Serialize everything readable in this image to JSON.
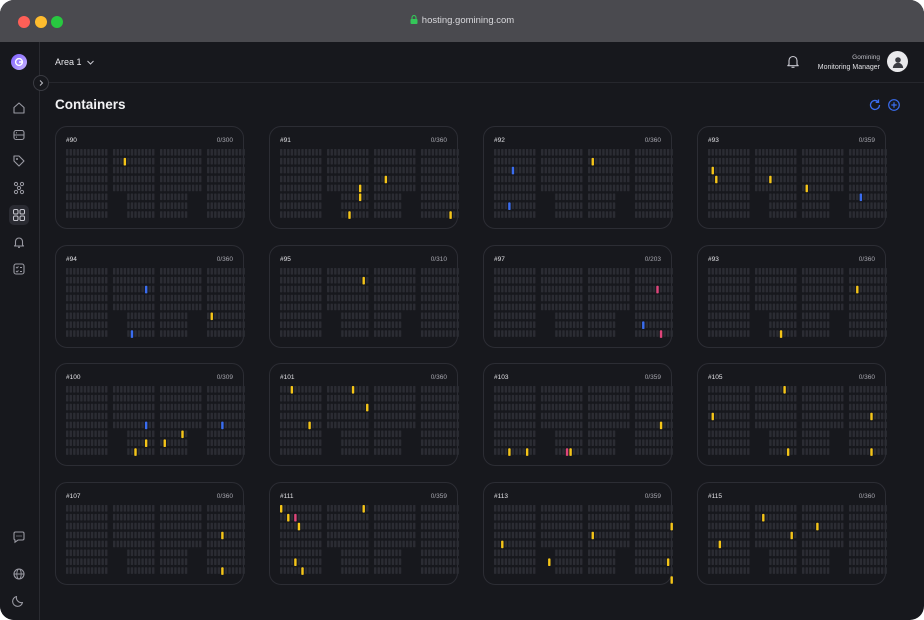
{
  "browser": {
    "url": "hosting.gomining.com"
  },
  "header": {
    "area": "Area 1",
    "user_line1": "Gomining",
    "user_line2": "Monitoring Manager"
  },
  "page": {
    "title": "Containers"
  },
  "colors": {
    "yellow": "#f5c518",
    "blue": "#3a6df0",
    "pink": "#e0457b",
    "slot": "#2b2c33",
    "accent": "#3a6df0"
  },
  "sidebar_icons": [
    "logo-icon",
    "home-icon",
    "server-icon",
    "tag-icon",
    "network-icon",
    "containers-icon",
    "bell-icon",
    "checklist-icon",
    "chat-icon",
    "globe-icon",
    "moon-icon"
  ],
  "containers": [
    {
      "id": "#90",
      "count": "0/300"
    },
    {
      "id": "#91",
      "count": "0/360"
    },
    {
      "id": "#92",
      "count": "0/360"
    },
    {
      "id": "#93",
      "count": "0/359"
    },
    {
      "id": "#94",
      "count": "0/360"
    },
    {
      "id": "#95",
      "count": "0/310"
    },
    {
      "id": "#97",
      "count": "0/203"
    },
    {
      "id": "#93",
      "count": "0/360"
    },
    {
      "id": "#100",
      "count": "0/309"
    },
    {
      "id": "#101",
      "count": "0/360"
    },
    {
      "id": "#103",
      "count": "0/359"
    },
    {
      "id": "#105",
      "count": "0/360"
    },
    {
      "id": "#107",
      "count": "0/360"
    },
    {
      "id": "#111",
      "count": "0/359"
    },
    {
      "id": "#113",
      "count": "0/359"
    },
    {
      "id": "#115",
      "count": "0/360"
    }
  ]
}
